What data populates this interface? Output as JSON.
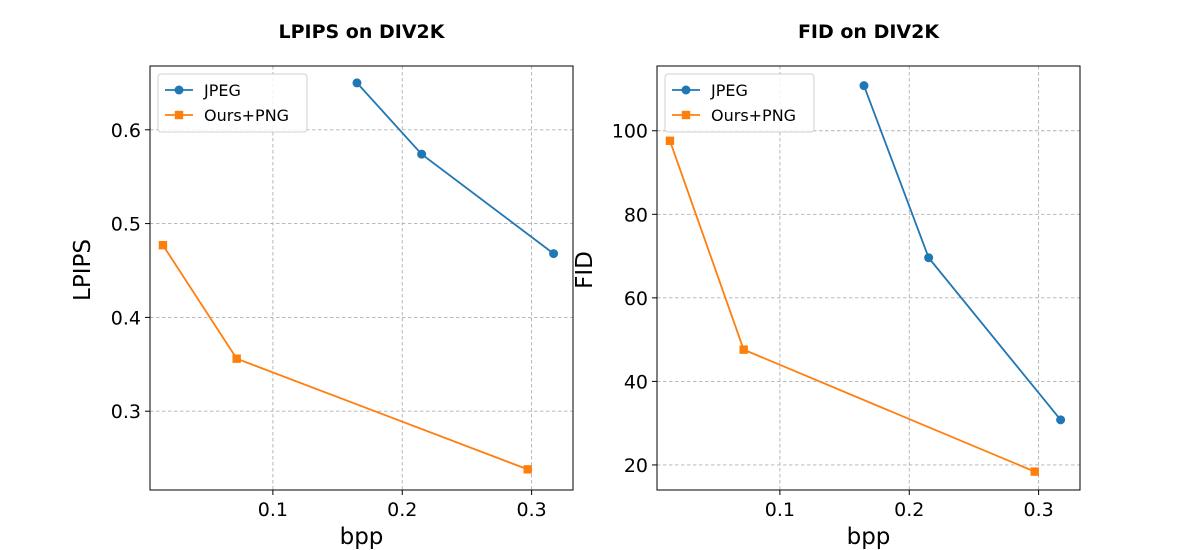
{
  "chart_data": [
    {
      "type": "line",
      "title": "LPIPS on DIV2K",
      "xlabel": "bpp",
      "ylabel": "LPIPS",
      "xlim": [
        0.005,
        0.332
      ],
      "ylim": [
        0.216,
        0.668
      ],
      "xticks": [
        0.1,
        0.2,
        0.3
      ],
      "yticks": [
        0.3,
        0.4,
        0.5,
        0.6
      ],
      "grid": true,
      "legend": "top-left",
      "series": [
        {
          "name": "JPEG",
          "color": "#1f77b4",
          "marker": "circle",
          "x": [
            0.165,
            0.215,
            0.317
          ],
          "y": [
            0.65,
            0.574,
            0.468
          ]
        },
        {
          "name": "Ours+PNG",
          "color": "#ff7f0e",
          "marker": "square",
          "x": [
            0.015,
            0.072,
            0.297
          ],
          "y": [
            0.477,
            0.356,
            0.238
          ]
        }
      ]
    },
    {
      "type": "line",
      "title": "FID on DIV2K",
      "xlabel": "bpp",
      "ylabel": "FID",
      "xlim": [
        0.005,
        0.332
      ],
      "ylim": [
        14.0,
        115.5
      ],
      "xticks": [
        0.1,
        0.2,
        0.3
      ],
      "yticks": [
        20,
        40,
        60,
        80,
        100
      ],
      "grid": true,
      "legend": "top-left",
      "series": [
        {
          "name": "JPEG",
          "color": "#1f77b4",
          "marker": "circle",
          "x": [
            0.165,
            0.215,
            0.317
          ],
          "y": [
            110.8,
            69.6,
            30.8
          ]
        },
        {
          "name": "Ours+PNG",
          "color": "#ff7f0e",
          "marker": "square",
          "x": [
            0.015,
            0.072,
            0.297
          ],
          "y": [
            97.6,
            47.6,
            18.4
          ]
        }
      ]
    }
  ]
}
